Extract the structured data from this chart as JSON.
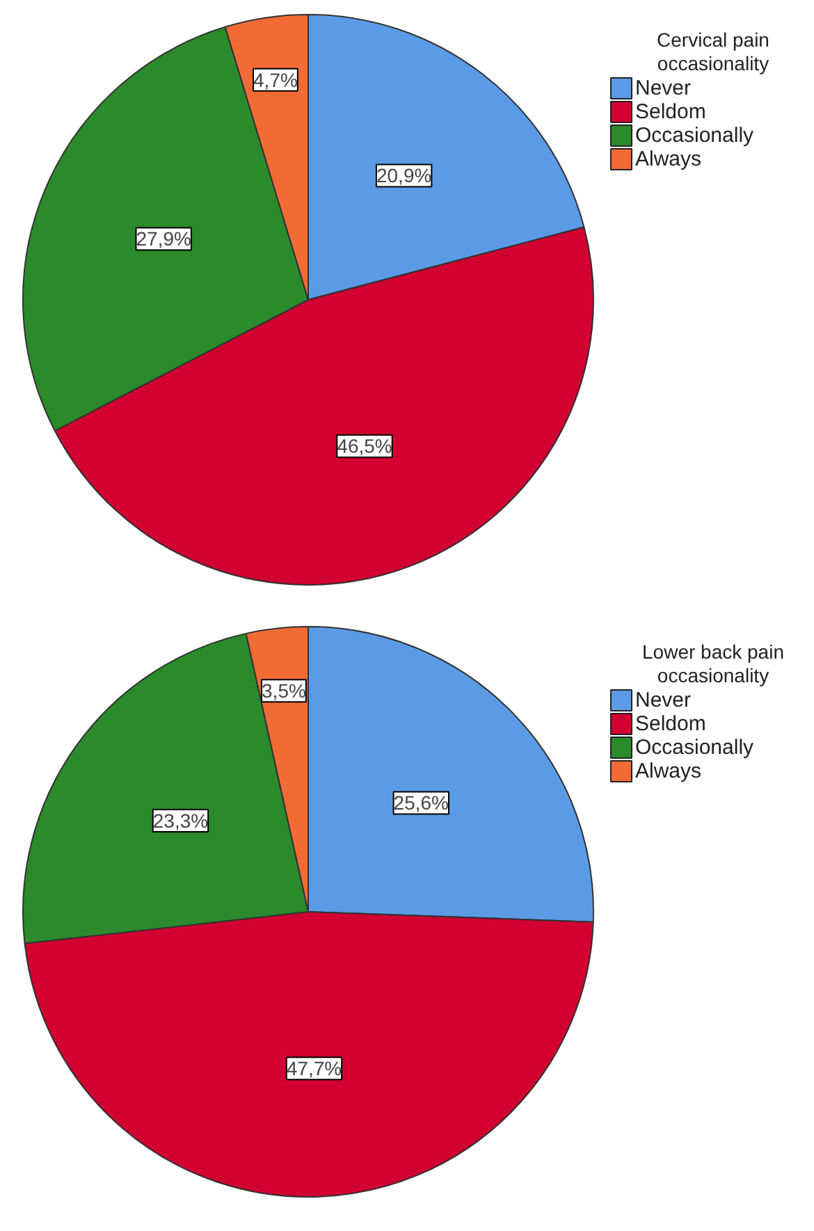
{
  "chart_data": [
    {
      "type": "pie",
      "legend_title": "Cervical pain occasionality",
      "categories": [
        "Never",
        "Seldom",
        "Occasionally",
        "Always"
      ],
      "values": [
        20.9,
        46.5,
        27.9,
        4.7
      ],
      "colors": [
        "#5b9be6",
        "#d10030",
        "#2b8a2b",
        "#f26b35"
      ],
      "value_labels": [
        "20,9%",
        "46,5%",
        "27,9%",
        "4,7%"
      ],
      "legend": "top right"
    },
    {
      "type": "pie",
      "legend_title": "Lower back pain occasionality",
      "categories": [
        "Never",
        "Seldom",
        "Occasionally",
        "Always"
      ],
      "values": [
        25.6,
        47.7,
        23.3,
        3.5
      ],
      "colors": [
        "#5b9be6",
        "#d10030",
        "#2b8a2b",
        "#f26b35"
      ],
      "value_labels": [
        "25,6%",
        "47,7%",
        "23,3%",
        "3,5%"
      ],
      "legend": "top right"
    }
  ]
}
